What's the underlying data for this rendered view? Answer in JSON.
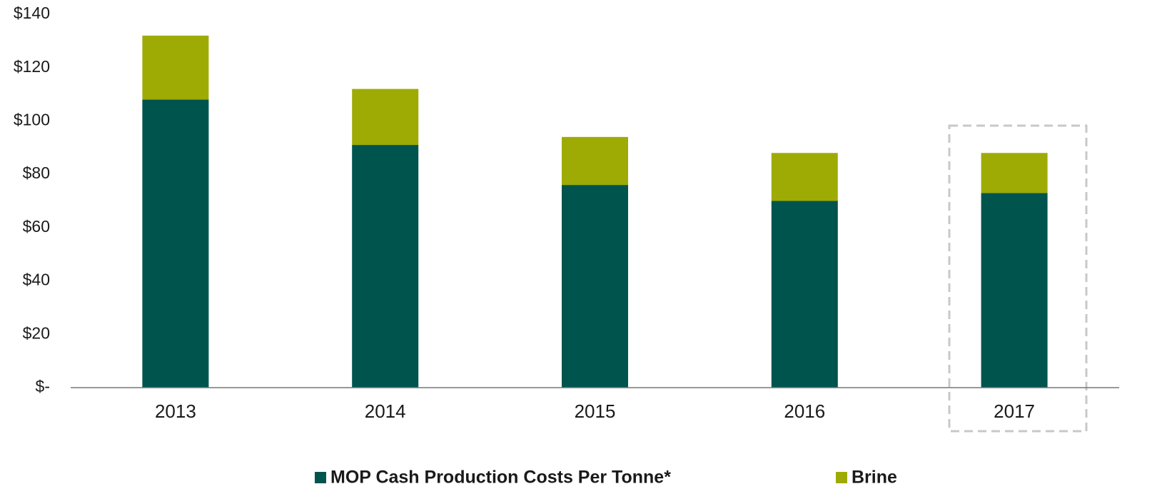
{
  "chart_data": {
    "type": "stacked_bar",
    "categories": [
      "2013",
      "2014",
      "2015",
      "2016",
      "2017"
    ],
    "series": [
      {
        "name": "MOP Cash Production Costs Per Tonne*",
        "color": "#00544e",
        "values": [
          108,
          91,
          76,
          70,
          73
        ]
      },
      {
        "name": "Brine",
        "color": "#9eab05",
        "values": [
          24,
          21,
          18,
          18,
          15
        ]
      }
    ],
    "ylim": [
      0,
      140
    ],
    "yticks": [
      {
        "value": 0,
        "label": "$-"
      },
      {
        "value": 20,
        "label": "$20"
      },
      {
        "value": 40,
        "label": "$40"
      },
      {
        "value": 60,
        "label": "$60"
      },
      {
        "value": 80,
        "label": "$80"
      },
      {
        "value": 100,
        "label": "$100"
      },
      {
        "value": 120,
        "label": "$120"
      },
      {
        "value": 140,
        "label": "$140"
      }
    ],
    "grid": false
  }
}
